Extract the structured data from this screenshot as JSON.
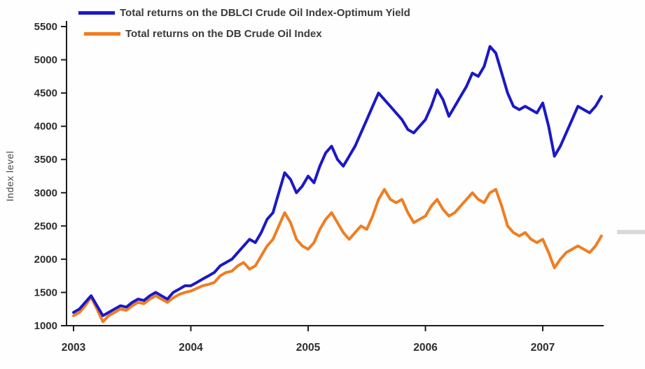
{
  "chart_data": {
    "type": "line",
    "title": "",
    "xlabel": "",
    "ylabel": "Index level",
    "ylim": [
      1000,
      5500
    ],
    "xlim": [
      2003,
      2007.6
    ],
    "grid": false,
    "legend_position": "top-left",
    "yticks": [
      1000,
      1500,
      2000,
      2500,
      3000,
      3500,
      4000,
      4500,
      5000,
      5500
    ],
    "xticks": [
      2003,
      2004,
      2005,
      2006,
      2007
    ],
    "x": [
      2003.0,
      2003.05,
      2003.1,
      2003.15,
      2003.2,
      2003.25,
      2003.3,
      2003.35,
      2003.4,
      2003.45,
      2003.5,
      2003.55,
      2003.6,
      2003.65,
      2003.7,
      2003.75,
      2003.8,
      2003.85,
      2003.9,
      2003.95,
      2004.0,
      2004.05,
      2004.1,
      2004.15,
      2004.2,
      2004.25,
      2004.3,
      2004.35,
      2004.4,
      2004.45,
      2004.5,
      2004.55,
      2004.6,
      2004.65,
      2004.7,
      2004.75,
      2004.8,
      2004.85,
      2004.9,
      2004.95,
      2005.0,
      2005.05,
      2005.1,
      2005.15,
      2005.2,
      2005.25,
      2005.3,
      2005.35,
      2005.4,
      2005.45,
      2005.5,
      2005.55,
      2005.6,
      2005.65,
      2005.7,
      2005.75,
      2005.8,
      2005.85,
      2005.9,
      2005.95,
      2006.0,
      2006.05,
      2006.1,
      2006.15,
      2006.2,
      2006.25,
      2006.3,
      2006.35,
      2006.4,
      2006.45,
      2006.5,
      2006.55,
      2006.6,
      2006.65,
      2006.7,
      2006.75,
      2006.8,
      2006.85,
      2006.9,
      2006.95,
      2007.0,
      2007.05,
      2007.1,
      2007.15,
      2007.2,
      2007.25,
      2007.3,
      2007.35,
      2007.4,
      2007.45,
      2007.5
    ],
    "series": [
      {
        "id": "dblci-oy",
        "name": "Total returns on the DBLCI Crude Oil Index-Optimum Yield",
        "color": "#1b18c6",
        "values": [
          1200,
          1250,
          1350,
          1450,
          1300,
          1150,
          1200,
          1250,
          1300,
          1280,
          1350,
          1400,
          1380,
          1450,
          1500,
          1450,
          1400,
          1500,
          1550,
          1600,
          1600,
          1650,
          1700,
          1750,
          1800,
          1900,
          1950,
          2000,
          2100,
          2200,
          2300,
          2250,
          2400,
          2600,
          2700,
          3000,
          3300,
          3200,
          3000,
          3100,
          3250,
          3150,
          3400,
          3600,
          3700,
          3500,
          3400,
          3550,
          3700,
          3900,
          4100,
          4300,
          4500,
          4400,
          4300,
          4200,
          4100,
          3950,
          3900,
          4000,
          4100,
          4300,
          4550,
          4400,
          4150,
          4300,
          4450,
          4600,
          4800,
          4750,
          4900,
          5200,
          5100,
          4800,
          4500,
          4300,
          4250,
          4300,
          4250,
          4200,
          4350,
          4000,
          3550,
          3700,
          3900,
          4100,
          4300,
          4250,
          4200,
          4300,
          4450
        ]
      },
      {
        "id": "db-crude",
        "name": "Total returns on the DB Crude Oil Index",
        "color": "#f07d21",
        "values": [
          1150,
          1200,
          1300,
          1430,
          1250,
          1060,
          1150,
          1200,
          1250,
          1230,
          1300,
          1350,
          1330,
          1400,
          1450,
          1400,
          1350,
          1420,
          1470,
          1500,
          1520,
          1560,
          1600,
          1620,
          1650,
          1750,
          1800,
          1820,
          1900,
          1950,
          1850,
          1900,
          2050,
          2200,
          2300,
          2500,
          2700,
          2550,
          2300,
          2200,
          2150,
          2250,
          2450,
          2600,
          2700,
          2550,
          2400,
          2300,
          2400,
          2500,
          2450,
          2650,
          2900,
          3050,
          2900,
          2850,
          2900,
          2700,
          2550,
          2600,
          2650,
          2800,
          2900,
          2750,
          2650,
          2700,
          2800,
          2900,
          3000,
          2900,
          2850,
          3000,
          3050,
          2800,
          2500,
          2400,
          2350,
          2400,
          2300,
          2250,
          2300,
          2100,
          1870,
          2000,
          2100,
          2150,
          2200,
          2150,
          2100,
          2200,
          2350
        ]
      }
    ]
  },
  "colors": {
    "axis": "#1c1c1c",
    "tick_text": "#2e2e2e",
    "legend_text": "#3b3b3b",
    "series_blue": "#1b18c6",
    "series_orange": "#f07d21"
  }
}
